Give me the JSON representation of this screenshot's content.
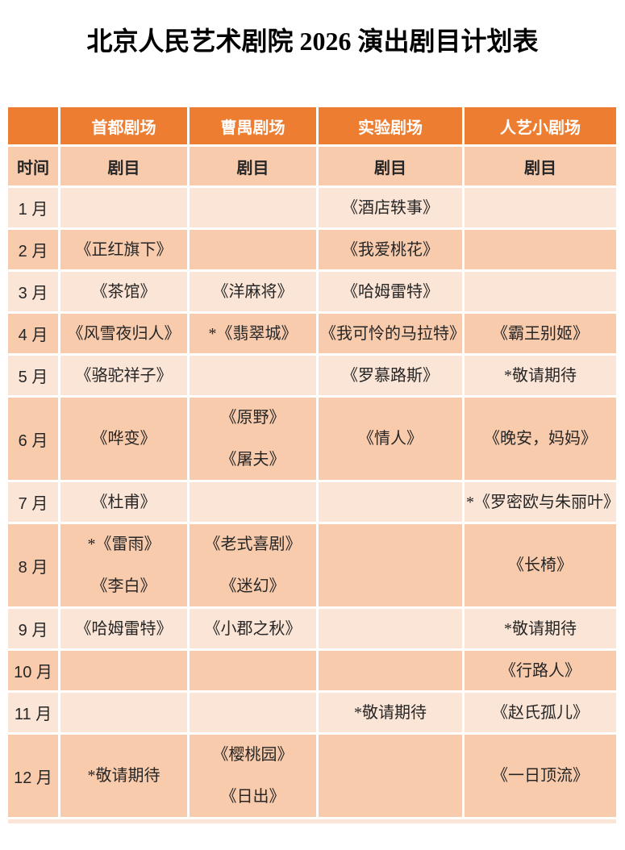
{
  "title": "北京人民艺术剧院 2026 演出剧目计划表",
  "colors": {
    "header_bg": "#ED7D31",
    "band_dark": "#F8CBAD",
    "band_light": "#FBE5D6",
    "header_text": "#FFFFFF",
    "body_text": "#262626",
    "page_bg": "#FFFFFF"
  },
  "table": {
    "corner_label": "",
    "venue_headers": [
      "首都剧场",
      "曹禺剧场",
      "实验剧场",
      "人艺小剧场"
    ],
    "time_label": "时间",
    "repertoire_labels": [
      "剧目",
      "剧目",
      "剧目",
      "剧目"
    ],
    "rows": [
      {
        "month": "1 月",
        "band": "light",
        "cells": [
          [],
          [],
          [
            "《酒店轶事》"
          ],
          []
        ]
      },
      {
        "month": "2 月",
        "band": "dark",
        "cells": [
          [
            "《正红旗下》"
          ],
          [],
          [
            "《我爱桃花》"
          ],
          []
        ]
      },
      {
        "month": "3 月",
        "band": "light",
        "cells": [
          [
            "《茶馆》"
          ],
          [
            "《洋麻将》"
          ],
          [
            "《哈姆雷特》"
          ],
          []
        ]
      },
      {
        "month": "4 月",
        "band": "dark",
        "cells": [
          [
            "《风雪夜归人》"
          ],
          [
            "*《翡翠城》"
          ],
          [
            "《我可怜的马拉特》"
          ],
          [
            "《霸王别姬》"
          ]
        ]
      },
      {
        "month": "5 月",
        "band": "light",
        "cells": [
          [
            "《骆驼祥子》"
          ],
          [],
          [
            "《罗慕路斯》"
          ],
          [
            "*敬请期待"
          ]
        ]
      },
      {
        "month": "6 月",
        "band": "dark",
        "cells": [
          [
            "《哗变》"
          ],
          [
            "《原野》",
            "《屠夫》"
          ],
          [
            "《情人》"
          ],
          [
            "《晚安，妈妈》"
          ]
        ]
      },
      {
        "month": "7 月",
        "band": "light",
        "cells": [
          [
            "《杜甫》"
          ],
          [],
          [],
          [
            "*《罗密欧与朱丽叶》"
          ]
        ]
      },
      {
        "month": "8 月",
        "band": "dark",
        "cells": [
          [
            "*《雷雨》",
            "《李白》"
          ],
          [
            "《老式喜剧》",
            "《迷幻》"
          ],
          [],
          [
            "《长椅》"
          ]
        ]
      },
      {
        "month": "9 月",
        "band": "light",
        "cells": [
          [
            "《哈姆雷特》"
          ],
          [
            "《小郡之秋》"
          ],
          [],
          [
            "*敬请期待"
          ]
        ]
      },
      {
        "month": "10 月",
        "band": "dark",
        "cells": [
          [],
          [],
          [],
          [
            "《行路人》"
          ]
        ]
      },
      {
        "month": "11 月",
        "band": "light",
        "cells": [
          [],
          [],
          [
            "*敬请期待"
          ],
          [
            "《赵氏孤儿》"
          ]
        ]
      },
      {
        "month": "12 月",
        "band": "dark",
        "cells": [
          [
            "*敬请期待"
          ],
          [
            "《樱桃园》",
            "《日出》"
          ],
          [],
          [
            "《一日顶流》"
          ]
        ]
      }
    ]
  }
}
